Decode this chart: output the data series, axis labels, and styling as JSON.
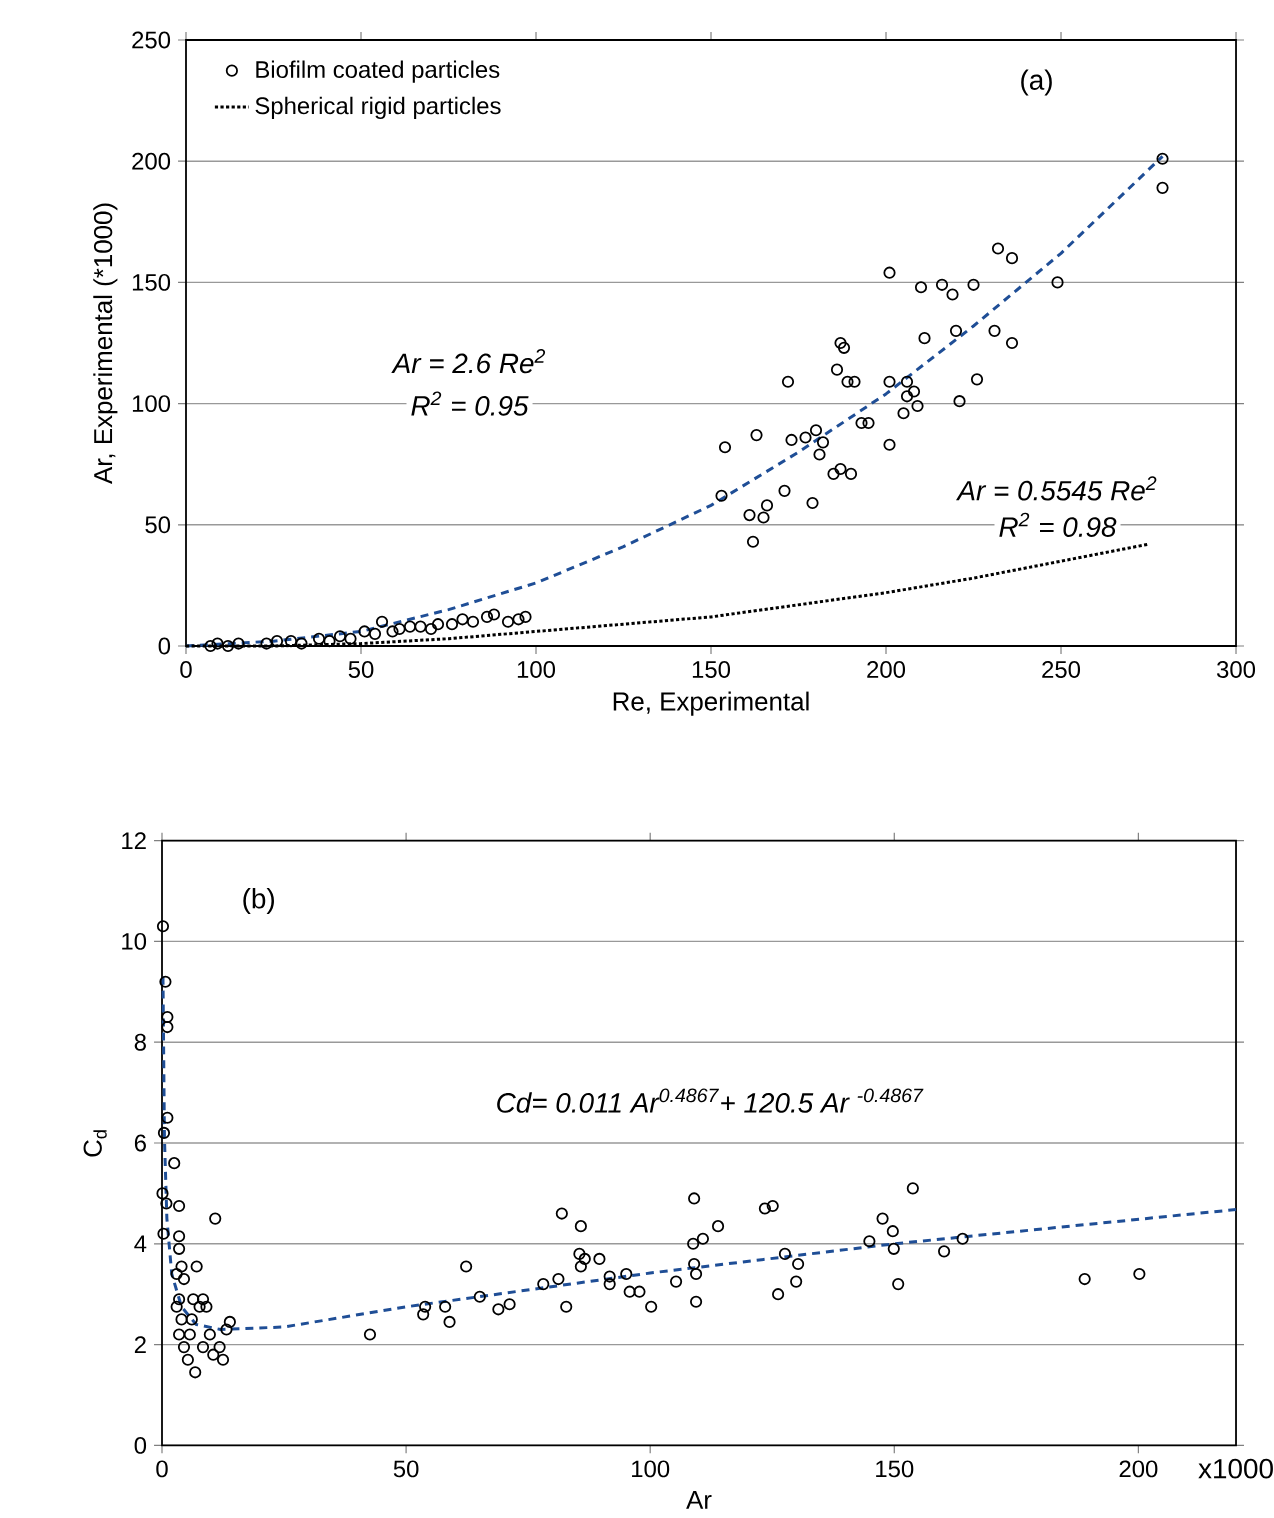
{
  "chart_data": [
    {
      "type": "scatter",
      "xlabel": "Re, Experimental",
      "ylabel": "Ar, Experimental (*1000)",
      "xlim": [
        0,
        300
      ],
      "xticks": [
        0,
        50,
        100,
        150,
        200,
        250,
        300
      ],
      "ylim": [
        0,
        250
      ],
      "yticks": [
        0,
        50,
        100,
        150,
        200,
        250
      ],
      "grid": "y",
      "legend": "top left",
      "annotations": [
        "(a)",
        "Ar = 2.6 Re$^{2}$",
        "R$^{2}$ = 0.95",
        "Ar = 0.5545 Re$^{2}$",
        "R$^{2}$ = 0.98"
      ],
      "series": [
        {
          "name": "Biofilm coated particles",
          "marker": "circle",
          "color": "#000000",
          "x": [
            7,
            9,
            12,
            15,
            23,
            26,
            30,
            33,
            38,
            41,
            44,
            47,
            51,
            54,
            56,
            59,
            61,
            64,
            67,
            70,
            72,
            76,
            79,
            82,
            86,
            88,
            92,
            95,
            97,
            279,
            279,
            232,
            236,
            201,
            210,
            216,
            219,
            225,
            249,
            211,
            220,
            231,
            236,
            187,
            188,
            172,
            186,
            189,
            191,
            201,
            206,
            208,
            206,
            205,
            209,
            221,
            226,
            193,
            195,
            201,
            154,
            163,
            173,
            177,
            180,
            182,
            181,
            185,
            187,
            190,
            171,
            179,
            153,
            161,
            165,
            166,
            162
          ],
          "values": [
            0,
            1,
            0,
            1,
            1,
            2,
            2,
            1,
            3,
            2,
            4,
            3,
            6,
            5,
            10,
            6,
            7,
            8,
            8,
            7,
            9,
            9,
            11,
            10,
            12,
            13,
            10,
            11,
            12,
            201,
            189,
            164,
            160,
            154,
            148,
            149,
            145,
            149,
            150,
            127,
            130,
            130,
            125,
            125,
            123,
            109,
            114,
            109,
            109,
            109,
            109,
            105,
            103,
            96,
            99,
            101,
            110,
            92,
            92,
            83,
            82,
            87,
            85,
            86,
            89,
            84,
            79,
            71,
            73,
            71,
            64,
            59,
            62,
            54,
            53,
            58,
            43
          ]
        },
        {
          "type": "line",
          "line_style": "dashed",
          "marker": "none",
          "color": "#1f4e96",
          "x": [
            0,
            25,
            50,
            75,
            100,
            125,
            150,
            175,
            200,
            225,
            250,
            279
          ],
          "values": [
            0,
            2,
            6,
            15,
            26,
            41,
            58,
            80,
            104,
            132,
            162,
            202
          ]
        },
        {
          "name": "Spherical rigid particles",
          "type": "line",
          "line_style": "dotted",
          "marker": "none",
          "color": "#000000",
          "x": [
            0,
            25,
            50,
            75,
            100,
            125,
            150,
            175,
            200,
            225,
            250,
            275
          ],
          "values": [
            0,
            0,
            1,
            3,
            6,
            9,
            12,
            17,
            22,
            28,
            35,
            42
          ]
        }
      ]
    },
    {
      "type": "scatter",
      "xlabel": "Ar",
      "ylabel": "C$_{d}$",
      "xlim": [
        0,
        220
      ],
      "xticks": [
        0,
        50,
        100,
        150,
        200
      ],
      "ylim": [
        0,
        12
      ],
      "yticks": [
        0,
        2,
        4,
        6,
        8,
        10,
        12
      ],
      "grid": "y",
      "annotations": [
        "(b)",
        "Cd= 0.011 Ar$^{0.4867}$+  120.5 Ar $^{-0.4867}$",
        "x1000"
      ],
      "series": [
        {
          "marker": "circle",
          "color": "#000000",
          "x": [
            0.2,
            0.7,
            1.1,
            1.1,
            1.1,
            0.4,
            2.5,
            0.1,
            0.9,
            0.3,
            3.5,
            3.5,
            10.9,
            3.5,
            4,
            4.5,
            3,
            3.5,
            3,
            4,
            3.5,
            4.5,
            7.1,
            6.4,
            7.7,
            6.1,
            8.4,
            6.8,
            5.3,
            5.7,
            9.1,
            9.8,
            10.5,
            11.8,
            12.5,
            13.2,
            13.9,
            8.4,
            42.6,
            53.5,
            53.9,
            58,
            58.9,
            62.3,
            65.1,
            68.9,
            71.2,
            78.1,
            81.2,
            81.9,
            85.8,
            82.8,
            85.5,
            86.6,
            89.6,
            85.8,
            91.7,
            91.7,
            95.1,
            95.8,
            97.8,
            100.2,
            105.3,
            109,
            108.8,
            110.8,
            113.9,
            109,
            109.4,
            109.4,
            123.5,
            125.1,
            127.6,
            130.3,
            129.9,
            126.2,
            147.6,
            149.7,
            144.9,
            149.9,
            150.8,
            153.8,
            160.2,
            164,
            189,
            200.2
          ],
          "values": [
            10.3,
            9.2,
            8.5,
            8.3,
            6.5,
            6.2,
            5.6,
            5.0,
            4.8,
            4.2,
            4.75,
            4.15,
            4.5,
            3.9,
            3.55,
            3.3,
            3.4,
            2.9,
            2.75,
            2.5,
            2.2,
            1.95,
            3.55,
            2.9,
            2.75,
            2.5,
            1.95,
            1.45,
            1.7,
            2.2,
            2.75,
            2.2,
            1.8,
            1.95,
            1.7,
            2.3,
            2.45,
            2.9,
            2.2,
            2.6,
            2.75,
            2.75,
            2.45,
            3.55,
            2.95,
            2.7,
            2.8,
            3.2,
            3.3,
            4.6,
            4.35,
            2.75,
            3.8,
            3.7,
            3.7,
            3.55,
            3.35,
            3.2,
            3.4,
            3.05,
            3.05,
            2.75,
            3.25,
            4.9,
            4.0,
            4.1,
            4.35,
            3.6,
            3.4,
            2.85,
            4.7,
            4.75,
            3.8,
            3.6,
            3.25,
            3.0,
            4.5,
            4.25,
            4.05,
            3.9,
            3.2,
            5.1,
            3.85,
            4.1,
            3.3,
            3.4
          ]
        },
        {
          "type": "line",
          "line_style": "dashed",
          "marker": "none",
          "color": "#1f4e96",
          "x": [
            0.2,
            0.5,
            1,
            2,
            4,
            7,
            12,
            25,
            50,
            100,
            150,
            220
          ],
          "values": [
            9.3,
            6.1,
            4.5,
            3.4,
            2.75,
            2.4,
            2.3,
            2.35,
            2.75,
            3.42,
            4.0,
            4.68
          ]
        }
      ]
    }
  ]
}
